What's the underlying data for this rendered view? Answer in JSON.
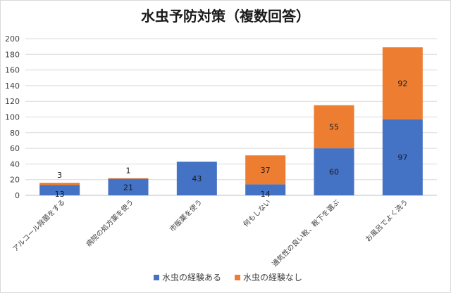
{
  "chart_data": {
    "type": "bar",
    "stacked": true,
    "title": "水虫予防対策（複数回答）",
    "categories": [
      "アルコール除菌をする",
      "病院の処方薬を使う",
      "市販薬を使う",
      "何もしない",
      "通気性の良い靴、靴下を選ぶ",
      "お風呂でよく洗う"
    ],
    "series": [
      {
        "name": "水虫の経験ある",
        "color": "#4472c4",
        "values": [
          13,
          21,
          43,
          14,
          60,
          97
        ]
      },
      {
        "name": "水虫の経験なし",
        "color": "#ed7d31",
        "values": [
          3,
          1,
          null,
          37,
          55,
          92
        ]
      }
    ],
    "ylim": [
      0,
      200
    ],
    "yticks": [
      0,
      20,
      40,
      60,
      80,
      100,
      120,
      140,
      160,
      180,
      200
    ],
    "grid": true,
    "legend": "bottom"
  }
}
